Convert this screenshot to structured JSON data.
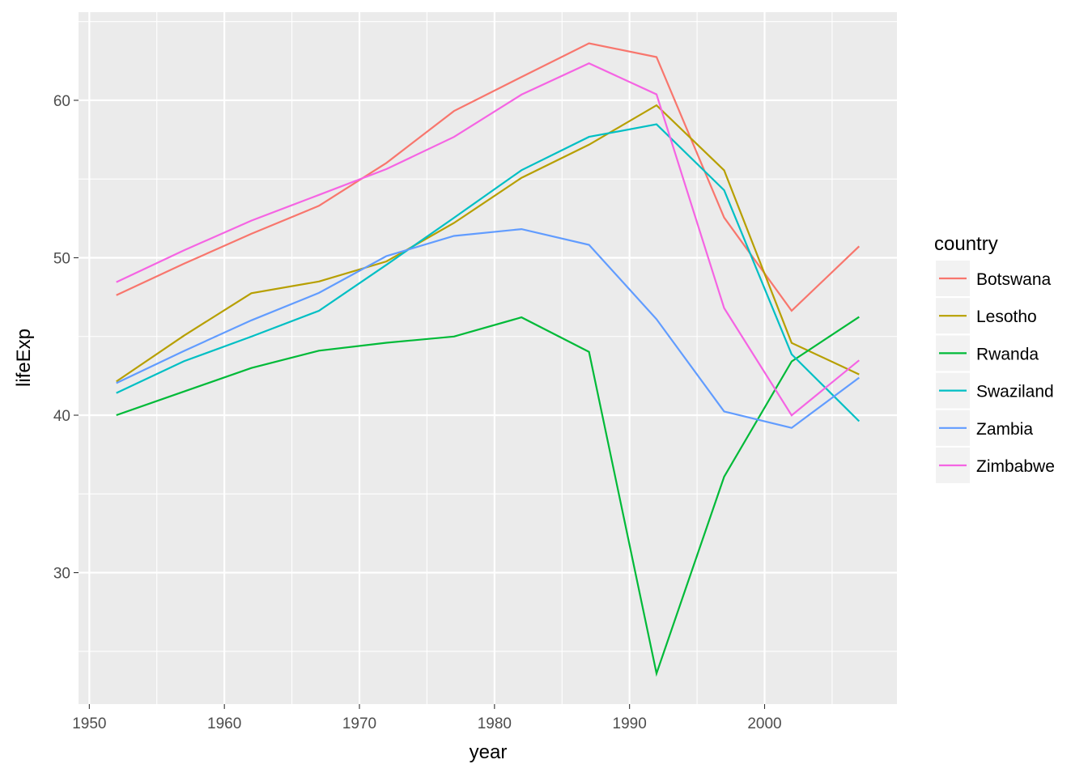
{
  "chart_data": {
    "type": "line",
    "title": "",
    "xlabel": "year",
    "ylabel": "lifeExp",
    "xlim": [
      1949.2,
      2009.8
    ],
    "ylim": [
      21.65,
      65.6
    ],
    "xticks": [
      1950,
      1960,
      1970,
      1980,
      1990,
      2000
    ],
    "yticks": [
      30,
      40,
      50,
      60
    ],
    "grid": true,
    "legend": {
      "title": "country",
      "placement": "right"
    },
    "x": [
      1952,
      1957,
      1962,
      1967,
      1972,
      1977,
      1982,
      1987,
      1992,
      1997,
      2002,
      2007
    ],
    "series": [
      {
        "name": "Botswana",
        "color": "#F8766D",
        "values": [
          47.622,
          49.618,
          51.52,
          53.298,
          56.024,
          59.319,
          61.484,
          63.622,
          62.745,
          52.556,
          46.634,
          50.728
        ]
      },
      {
        "name": "Lesotho",
        "color": "#B79F00",
        "values": [
          42.138,
          45.047,
          47.747,
          48.492,
          49.767,
          52.208,
          55.078,
          57.18,
          59.685,
          55.558,
          44.593,
          42.592
        ]
      },
      {
        "name": "Rwanda",
        "color": "#00BA38",
        "values": [
          40.0,
          41.5,
          43.0,
          44.1,
          44.6,
          45.0,
          46.218,
          44.02,
          23.599,
          36.087,
          43.413,
          46.242
        ]
      },
      {
        "name": "Swaziland",
        "color": "#00BFC4",
        "values": [
          41.407,
          43.424,
          44.992,
          46.633,
          49.552,
          52.537,
          55.561,
          57.678,
          58.474,
          54.289,
          43.869,
          39.613
        ]
      },
      {
        "name": "Zambia",
        "color": "#619CFF",
        "values": [
          42.038,
          44.077,
          46.023,
          47.768,
          50.107,
          51.386,
          51.821,
          50.821,
          46.1,
          40.238,
          39.193,
          42.384
        ]
      },
      {
        "name": "Zimbabwe",
        "color": "#F564E3",
        "values": [
          48.451,
          50.469,
          52.358,
          53.995,
          55.635,
          57.674,
          60.363,
          62.351,
          60.377,
          46.809,
          39.989,
          43.487
        ]
      }
    ]
  }
}
